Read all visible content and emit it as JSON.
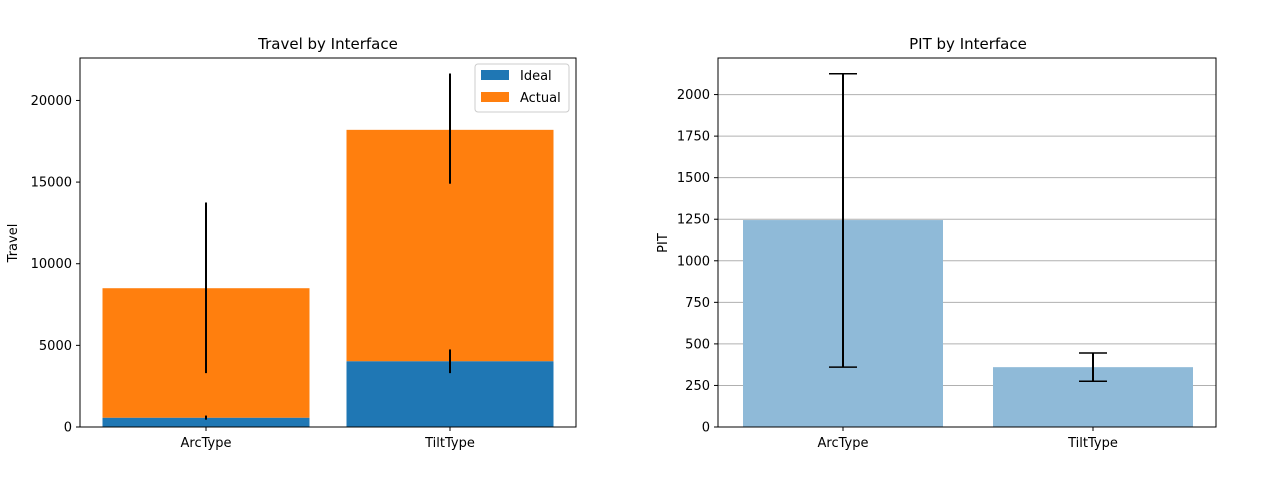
{
  "chart_data": [
    {
      "type": "bar",
      "stacked": true,
      "title": "Travel by Interface",
      "xlabel": "",
      "ylabel": "Travel",
      "categories": [
        "ArcType",
        "TiltType"
      ],
      "ylim": [
        0,
        22600
      ],
      "yticks": [
        0,
        5000,
        10000,
        15000,
        20000
      ],
      "grid": false,
      "legend_position": "top-right",
      "series": [
        {
          "name": "Ideal",
          "color": "#1f77b4",
          "values": [
            570,
            4030
          ],
          "error_low": [
            450,
            3300
          ],
          "error_high": [
            700,
            4750
          ]
        },
        {
          "name": "Actual",
          "color": "#ff7f0e",
          "values": [
            7930,
            14170
          ],
          "error_low": [
            3300,
            14900
          ],
          "error_high": [
            13750,
            21650
          ]
        }
      ]
    },
    {
      "type": "bar",
      "title": "PIT by Interface",
      "xlabel": "",
      "ylabel": "PIT",
      "categories": [
        "ArcType",
        "TiltType"
      ],
      "ylim": [
        0,
        2220
      ],
      "yticks": [
        0,
        250,
        500,
        750,
        1000,
        1250,
        1500,
        1750,
        2000
      ],
      "grid": true,
      "grid_axis": "y",
      "series": [
        {
          "name": "",
          "color": "#8fbad8",
          "values": [
            1245,
            360
          ],
          "error_low": [
            360,
            275
          ],
          "error_high": [
            2125,
            445
          ]
        }
      ]
    }
  ]
}
